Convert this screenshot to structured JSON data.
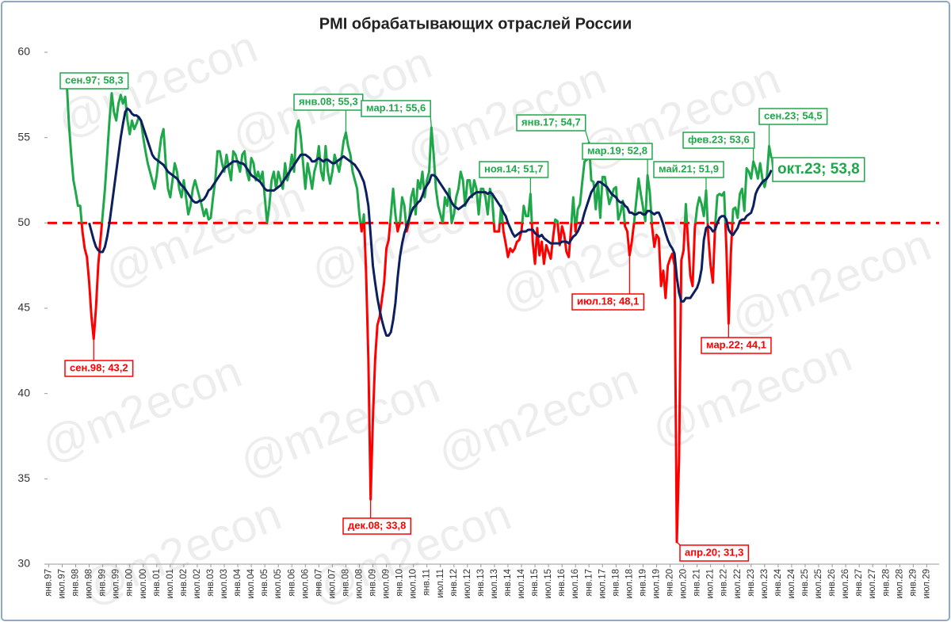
{
  "chart_data": {
    "type": "line",
    "title": "PMI обрабатывающих отраслей России",
    "watermark": "@m2econ",
    "categories": [
      "янв.97",
      null,
      null,
      null,
      null,
      null,
      "июл.97",
      null,
      null,
      null,
      null,
      null,
      "янв.98",
      null,
      null,
      null,
      null,
      null,
      "июл.98",
      null,
      null,
      null,
      null,
      null,
      "янв.99",
      null,
      null,
      null,
      null,
      null,
      "июл.99",
      null,
      null,
      null,
      null,
      null,
      "янв.00",
      null,
      null,
      null,
      null,
      null,
      "июл.00",
      null,
      null,
      null,
      null,
      null,
      "янв.01",
      null,
      null,
      null,
      null,
      null,
      "июл.01",
      null,
      null,
      null,
      null,
      null,
      "янв.02",
      null,
      null,
      null,
      null,
      null,
      "июл.02",
      null,
      null,
      null,
      null,
      null,
      "янв.03",
      null,
      null,
      null,
      null,
      null,
      "июл.03",
      null,
      null,
      null,
      null,
      null,
      "янв.04",
      null,
      null,
      null,
      null,
      null,
      "июл.04",
      null,
      null,
      null,
      null,
      null,
      "янв.05",
      null,
      null,
      null,
      null,
      null,
      "июл.05",
      null,
      null,
      null,
      null,
      null,
      "янв.06",
      null,
      null,
      null,
      null,
      null,
      "июл.06",
      null,
      null,
      null,
      null,
      null,
      "янв.07",
      null,
      null,
      null,
      null,
      null,
      "июл.07",
      null,
      null,
      null,
      null,
      null,
      "янв.08",
      null,
      null,
      null,
      null,
      null,
      "июл.08",
      null,
      null,
      null,
      null,
      null,
      "янв.09",
      null,
      null,
      null,
      null,
      null,
      "июл.09",
      null,
      null,
      null,
      null,
      null,
      "янв.10",
      null,
      null,
      null,
      null,
      null,
      "июл.10",
      null,
      null,
      null,
      null,
      null,
      "янв.11",
      null,
      null,
      null,
      null,
      null,
      "июл.11",
      null,
      null,
      null,
      null,
      null,
      "янв.12",
      null,
      null,
      null,
      null,
      null,
      "июл.12",
      null,
      null,
      null,
      null,
      null,
      "янв.13",
      null,
      null,
      null,
      null,
      null,
      "июл.13",
      null,
      null,
      null,
      null,
      null,
      "янв.14",
      null,
      null,
      null,
      null,
      null,
      "июл.14",
      null,
      null,
      null,
      null,
      null,
      "янв.15",
      null,
      null,
      null,
      null,
      null,
      "июл.15",
      null,
      null,
      null,
      null,
      null,
      "янв.16",
      null,
      null,
      null,
      null,
      null,
      "июл.16",
      null,
      null,
      null,
      null,
      null,
      "янв.17",
      null,
      null,
      null,
      null,
      null,
      "июл.17",
      null,
      null,
      null,
      null,
      null,
      "янв.18",
      null,
      null,
      null,
      null,
      null,
      "июл.18",
      null,
      null,
      null,
      null,
      null,
      "янв.19",
      null,
      null,
      null,
      null,
      null,
      "июл.19",
      null,
      null,
      null,
      null,
      null,
      "янв.20",
      null,
      null,
      null,
      null,
      null,
      "июл.20",
      null,
      null,
      null,
      null,
      null,
      "янв.21",
      null,
      null,
      null,
      null,
      null,
      "июл.21",
      null,
      null,
      null,
      null,
      null,
      "янв.22",
      null,
      null,
      null,
      null,
      null,
      "июл.22",
      null,
      null,
      null,
      null,
      null,
      "янв.23",
      null,
      null,
      null,
      null,
      null,
      "июл.23",
      null,
      null,
      null,
      null,
      null,
      "янв.24",
      null,
      null,
      null,
      null,
      null,
      "июл.24",
      null,
      null,
      null,
      null,
      null,
      "янв.25",
      null,
      null,
      null,
      null,
      null,
      "июл.25",
      null,
      null,
      null,
      null,
      null,
      "янв.26",
      null,
      null,
      null,
      null,
      null,
      "июл.26",
      null,
      null,
      null,
      null,
      null,
      "янв.27",
      null,
      null,
      null,
      null,
      null,
      "июл.27",
      null,
      null,
      null,
      null,
      null,
      "янв.28",
      null,
      null,
      null,
      null,
      null,
      "июл.28",
      null,
      null,
      null,
      null,
      null,
      "янв.29",
      null,
      null,
      null,
      null,
      null,
      "июл.29",
      null,
      null,
      null,
      null,
      null
    ],
    "series": [
      {
        "color_above": "#1ea84a",
        "color_below": "#ff0000",
        "threshold": 50,
        "values": [
          null,
          null,
          null,
          null,
          null,
          null,
          null,
          null,
          58.3,
          55.8,
          54.0,
          52.5,
          51.8,
          51.0,
          51.0,
          49.5,
          48.5,
          48.0,
          46.5,
          44.5,
          43.2,
          45.0,
          47.5,
          49.0,
          50.5,
          52.0,
          54.0,
          56.0,
          57.6,
          56.5,
          56.0,
          57.0,
          57.5,
          57.0,
          57.4,
          56.0,
          55.2,
          56.0,
          55.5,
          55.8,
          56.2,
          56.0,
          55.0,
          54.2,
          53.5,
          53.0,
          52.5,
          52.0,
          52.8,
          54.0,
          55.0,
          55.5,
          53.5,
          52.0,
          51.5,
          52.5,
          53.5,
          53.0,
          52.0,
          51.5,
          52.5,
          51.5,
          50.5,
          51.0,
          52.0,
          52.5,
          52.0,
          51.5,
          51.0,
          50.4,
          50.8,
          50.2,
          50.3,
          51.5,
          52.5,
          54.2,
          54.2,
          53.5,
          53.0,
          54.0,
          53.2,
          52.5,
          54.2,
          54.0,
          53.5,
          53.0,
          54.0,
          54.2,
          53.0,
          52.5,
          53.8,
          53.5,
          52.5,
          53.0,
          52.5,
          53.0,
          51.5,
          50.0,
          51.0,
          52.5,
          53.0,
          52.0,
          53.0,
          52.5,
          52.0,
          53.5,
          52.5,
          53.0,
          54.0,
          53.0,
          55.5,
          56.0,
          55.0,
          53.5,
          52.0,
          53.5,
          52.8,
          52.0,
          53.0,
          53.5,
          54.5,
          53.0,
          52.5,
          54.5,
          53.0,
          52.3,
          53.0,
          54.0,
          53.5,
          53.0,
          53.8,
          54.8,
          55.3,
          54.5,
          54.0,
          53.0,
          52.5,
          52.0,
          50.5,
          49.5,
          50.5,
          47.0,
          42.0,
          33.8,
          38.5,
          42.0,
          44.0,
          44.5,
          45.5,
          46.5,
          48.5,
          49.0,
          50.5,
          52.0,
          50.5,
          49.5,
          50.0,
          51.5,
          51.0,
          49.5,
          50.0,
          51.5,
          52.0,
          50.5,
          52.5,
          52.0,
          53.0,
          51.5,
          52.5,
          53.0,
          55.6,
          54.0,
          52.0,
          51.0,
          50.5,
          50.0,
          51.5,
          51.0,
          52.0,
          50.0,
          50.5,
          51.5,
          52.0,
          53.0,
          52.5,
          51.0,
          52.5,
          52.5,
          51.5,
          52.5,
          52.0,
          50.5,
          52.0,
          52.0,
          51.5,
          50.5,
          52.0,
          51.5,
          49.5,
          49.5,
          49.5,
          51.0,
          49.5,
          48.8,
          48.0,
          48.5,
          48.3,
          48.5,
          48.9,
          49.0,
          49.5,
          51.0,
          50.4,
          50.4,
          51.7,
          48.9,
          47.6,
          49.7,
          48.1,
          48.9,
          47.6,
          48.7,
          48.3,
          47.9,
          49.1,
          50.2,
          50.1,
          48.7,
          49.8,
          49.3,
          48.3,
          48.0,
          49.6,
          51.5,
          49.5,
          50.8,
          51.1,
          52.4,
          53.6,
          53.7,
          54.7,
          52.5,
          52.4,
          50.8,
          52.4,
          50.3,
          52.7,
          52.7,
          51.9,
          51.1,
          51.5,
          52.0,
          52.1,
          50.2,
          50.6,
          51.3,
          49.8,
          49.5,
          48.1,
          48.9,
          50.0,
          51.3,
          52.6,
          51.7,
          50.9,
          50.1,
          52.8,
          51.8,
          49.8,
          48.6,
          49.3,
          49.1,
          46.3,
          47.2,
          45.6,
          47.5,
          47.9,
          48.2,
          47.5,
          31.3,
          36.2,
          47.8,
          48.4,
          51.1,
          48.9,
          46.9,
          46.3,
          49.7,
          50.9,
          51.5,
          51.1,
          50.4,
          51.9,
          49.2,
          47.5,
          46.5,
          49.8,
          51.6,
          51.7,
          51.6,
          51.8,
          48.6,
          44.1,
          48.2,
          50.8,
          50.9,
          50.3,
          51.7,
          52.0,
          50.7,
          53.2,
          53.0,
          52.6,
          53.6,
          53.2,
          52.6,
          53.5,
          52.6,
          52.1,
          52.7,
          54.5,
          53.8,
          null,
          null,
          null,
          null,
          null,
          null,
          null,
          null,
          null,
          null,
          null,
          null,
          null,
          null,
          null,
          null,
          null,
          null,
          null,
          null,
          null,
          null,
          null,
          null,
          null,
          null,
          null,
          null,
          null,
          null,
          null,
          null,
          null,
          null,
          null,
          null,
          null,
          null,
          null,
          null,
          null,
          null,
          null,
          null,
          null,
          null,
          null,
          null,
          null,
          null,
          null,
          null,
          null,
          null,
          null,
          null,
          null,
          null,
          null,
          null,
          null,
          null,
          null,
          null,
          null,
          null,
          null,
          null,
          null,
          null,
          null,
          null,
          null,
          null
        ]
      },
      {
        "color": "#0c1f5e",
        "values": [
          null,
          null,
          null,
          null,
          null,
          null,
          null,
          null,
          null,
          null,
          null,
          null,
          null,
          null,
          null,
          null,
          null,
          null,
          50.0,
          49.5,
          49.0,
          48.6,
          48.4,
          48.3,
          48.3,
          48.6,
          49.2,
          50.0,
          51.0,
          52.0,
          53.0,
          54.0,
          55.0,
          55.8,
          56.5,
          56.7,
          56.6,
          56.4,
          56.3,
          56.3,
          56.2,
          56.0,
          55.6,
          55.2,
          54.8,
          54.4,
          54.0,
          53.8,
          53.7,
          53.6,
          53.5,
          53.4,
          53.2,
          53.0,
          52.9,
          52.8,
          52.7,
          52.6,
          52.4,
          52.2,
          52.1,
          51.9,
          51.7,
          51.5,
          51.3,
          51.2,
          51.2,
          51.3,
          51.3,
          51.4,
          51.6,
          51.9,
          52.0,
          52.2,
          52.4,
          52.6,
          52.8,
          53.0,
          53.2,
          53.3,
          53.4,
          53.5,
          53.6,
          53.6,
          53.6,
          53.5,
          53.5,
          53.4,
          53.2,
          53.0,
          52.8,
          52.7,
          52.6,
          52.5,
          52.4,
          52.2,
          52.0,
          51.9,
          51.9,
          51.9,
          51.9,
          52.0,
          52.1,
          52.2,
          52.4,
          52.6,
          52.8,
          53.0,
          53.2,
          53.4,
          53.6,
          53.8,
          54.0,
          54.0,
          54.0,
          53.9,
          53.8,
          53.6,
          53.6,
          53.7,
          53.8,
          53.7,
          53.6,
          53.7,
          53.7,
          53.6,
          53.5,
          53.5,
          53.6,
          53.7,
          53.8,
          53.9,
          53.8,
          53.7,
          53.6,
          53.5,
          53.4,
          53.2,
          53.0,
          52.7,
          52.4,
          51.8,
          51.0,
          49.3,
          47.5,
          46.5,
          45.6,
          44.9,
          44.3,
          43.8,
          43.4,
          43.4,
          43.6,
          44.3,
          45.3,
          46.8,
          48.0,
          48.8,
          49.4,
          49.8,
          50.2,
          50.6,
          50.9,
          51.0,
          51.2,
          51.3,
          51.6,
          52.0,
          52.2,
          52.4,
          52.8,
          52.8,
          52.7,
          52.5,
          52.3,
          52.1,
          51.9,
          51.7,
          51.5,
          51.2,
          51.0,
          50.9,
          50.8,
          50.9,
          51.0,
          51.1,
          51.3,
          51.5,
          51.6,
          51.7,
          51.8,
          51.8,
          51.8,
          51.8,
          51.8,
          51.7,
          51.8,
          51.7,
          51.5,
          51.3,
          51.1,
          50.9,
          50.6,
          50.4,
          50.0,
          49.7,
          49.4,
          49.2,
          49.3,
          49.4,
          49.5,
          49.5,
          49.5,
          49.6,
          49.6,
          49.6,
          49.4,
          49.3,
          49.2,
          49.3,
          49.1,
          49.0,
          48.9,
          48.8,
          48.8,
          48.8,
          48.8,
          48.8,
          48.9,
          48.9,
          48.9,
          48.8,
          49.0,
          49.2,
          49.3,
          49.5,
          49.8,
          50.1,
          50.6,
          51.0,
          51.4,
          51.8,
          52.0,
          52.2,
          52.4,
          52.4,
          52.3,
          52.2,
          52.1,
          51.9,
          51.7,
          51.6,
          51.5,
          51.3,
          51.2,
          51.2,
          51.0,
          50.9,
          50.6,
          50.6,
          50.5,
          50.5,
          50.6,
          50.6,
          50.5,
          50.5,
          50.7,
          50.7,
          50.6,
          50.5,
          50.6,
          50.6,
          50.3,
          49.9,
          49.4,
          49.0,
          48.7,
          48.5,
          48.2,
          46.8,
          45.9,
          45.4,
          45.4,
          45.6,
          45.6,
          45.6,
          45.8,
          46.0,
          46.2,
          46.6,
          47.3,
          49.0,
          49.7,
          49.8,
          49.7,
          49.5,
          49.6,
          50.0,
          50.3,
          50.4,
          50.4,
          50.2,
          49.6,
          49.4,
          49.3,
          49.5,
          49.7,
          50.1,
          50.2,
          50.2,
          50.4,
          50.5,
          50.6,
          51.0,
          51.7,
          52.0,
          52.2,
          52.4,
          52.5,
          52.6,
          52.8,
          53.1,
          null,
          null,
          null,
          null,
          null,
          null,
          null,
          null,
          null,
          null,
          null,
          null,
          null,
          null,
          null,
          null,
          null,
          null,
          null,
          null,
          null,
          null,
          null,
          null,
          null,
          null,
          null,
          null,
          null,
          null,
          null,
          null,
          null,
          null,
          null,
          null,
          null,
          null,
          null,
          null,
          null,
          null,
          null,
          null,
          null,
          null,
          null,
          null,
          null,
          null,
          null,
          null,
          null,
          null,
          null,
          null,
          null,
          null,
          null,
          null,
          null,
          null,
          null,
          null,
          null,
          null,
          null,
          null,
          null,
          null,
          null,
          null,
          null,
          null
        ]
      }
    ],
    "reference_line": {
      "value": 50,
      "color": "#ff0000"
    },
    "annotations": [
      "сен.97; 58,3",
      "сен.98; 43,2",
      "янв.08; 55,3",
      "мар.11; 55,6",
      "дек.08; 33,8",
      "ноя.14; 51,7",
      "янв.17; 54,7",
      "июл.18; 48,1",
      "мар.19; 52,8",
      "май.21; 51,9",
      "апр.20; 31,3",
      "фев.23; 53,6",
      "мар.22; 44,1",
      "сен.23; 54,5",
      "окт.23; 53,8"
    ],
    "ylim": [
      30,
      60
    ],
    "yticks": [
      30,
      35,
      40,
      45,
      50,
      55,
      60
    ],
    "grid": false
  }
}
